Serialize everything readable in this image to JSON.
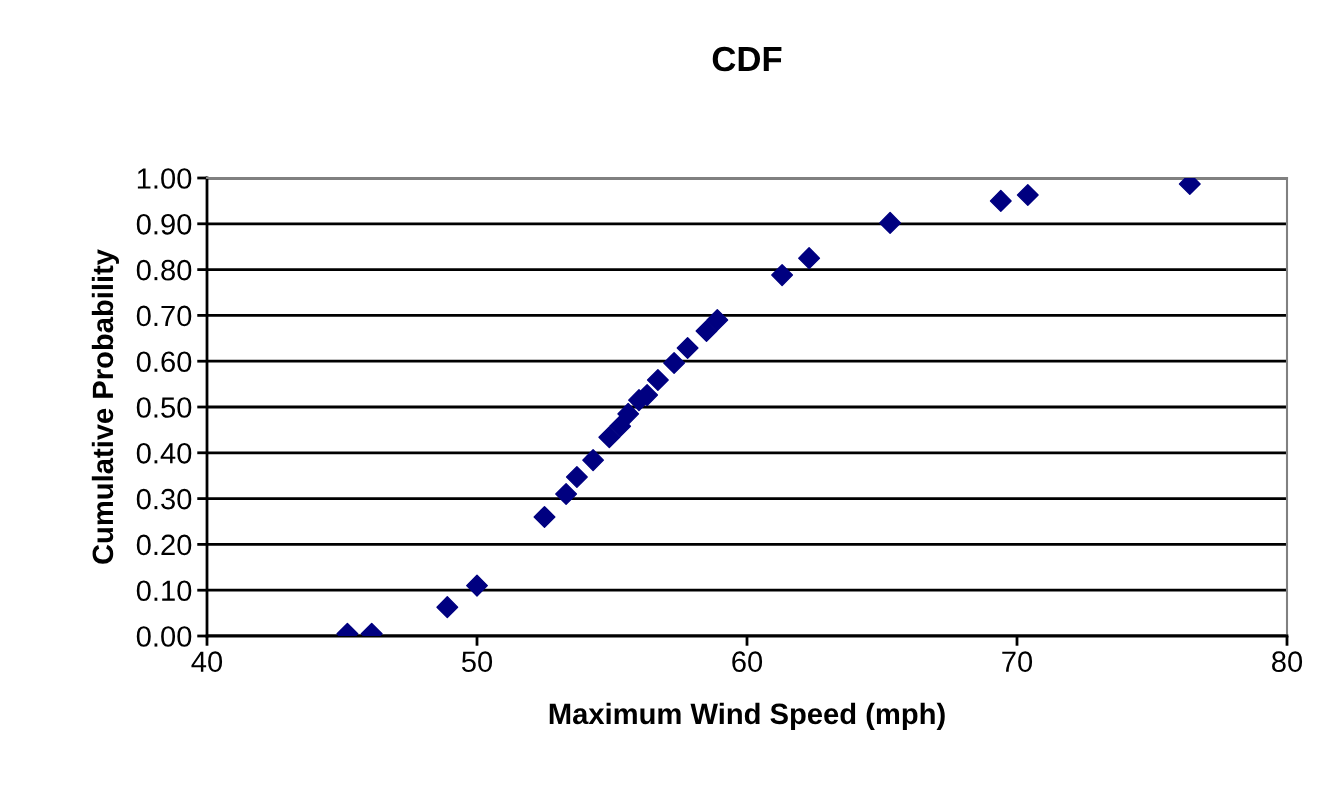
{
  "chart_data": {
    "type": "scatter",
    "title": "CDF",
    "xlabel": "Maximum Wind Speed (mph)",
    "ylabel": "Cumulative Probability",
    "x": [
      45.2,
      46.1,
      48.9,
      50.0,
      52.5,
      53.3,
      53.7,
      54.3,
      54.9,
      55.3,
      55.6,
      56.0,
      56.3,
      56.7,
      57.3,
      57.8,
      58.5,
      58.9,
      61.3,
      62.3,
      65.3,
      69.4,
      70.4,
      76.4
    ],
    "series": [
      {
        "color": "#000080",
        "values": [
          0.005,
          0.005,
          0.063,
          0.11,
          0.26,
          0.31,
          0.347,
          0.384,
          0.434,
          0.458,
          0.485,
          0.515,
          0.526,
          0.559,
          0.596,
          0.629,
          0.666,
          0.69,
          0.788,
          0.825,
          0.902,
          0.95,
          0.963,
          0.987
        ]
      }
    ],
    "xlim": [
      40,
      80
    ],
    "xticks": [
      40,
      50,
      60,
      70,
      80
    ],
    "ylim": [
      0,
      1
    ],
    "yticks": [
      {
        "value": 0,
        "label": "0.00"
      },
      {
        "value": 0.1,
        "label": "0.10"
      },
      {
        "value": 0.2,
        "label": "0.20"
      },
      {
        "value": 0.3,
        "label": "0.30"
      },
      {
        "value": 0.4,
        "label": "0.40"
      },
      {
        "value": 0.5,
        "label": "0.50"
      },
      {
        "value": 0.6,
        "label": "0.60"
      },
      {
        "value": 0.7,
        "label": "0.70"
      },
      {
        "value": 0.8,
        "label": "0.80"
      },
      {
        "value": 0.9,
        "label": "0.90"
      },
      {
        "value": 1,
        "label": "1.00"
      }
    ],
    "grid": "y",
    "marker": "diamond",
    "legend": false
  }
}
